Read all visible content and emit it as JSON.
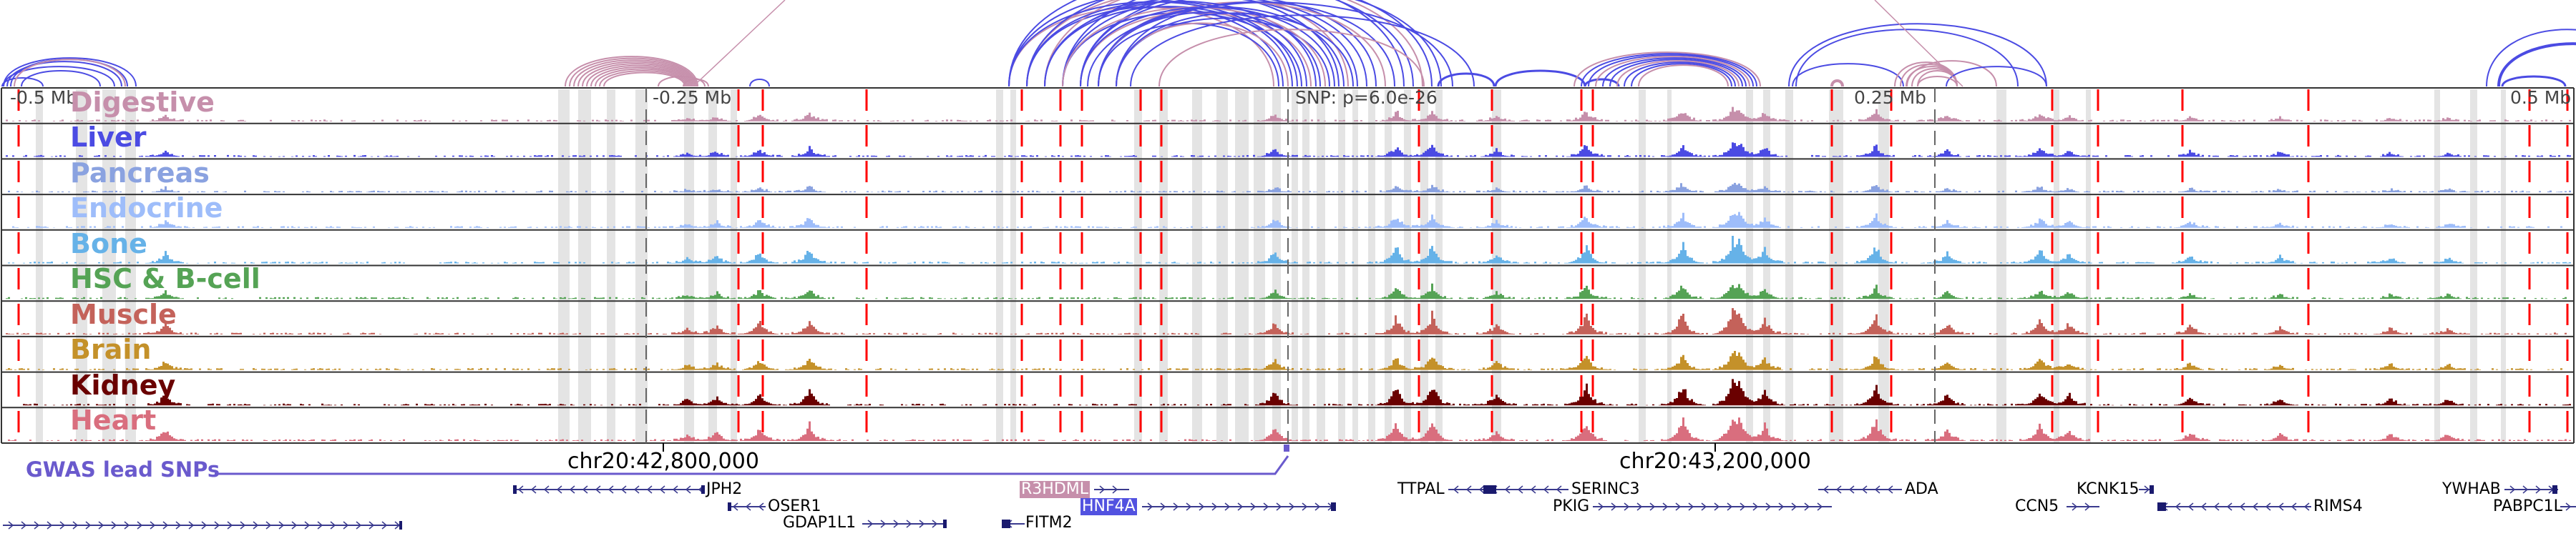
{
  "browser": {
    "tracks": [
      {
        "name": "Digestive",
        "color": "#c68fab"
      },
      {
        "name": "Liver",
        "color": "#4b4be3"
      },
      {
        "name": "Pancreas",
        "color": "#8aa2e0"
      },
      {
        "name": "Endocrine",
        "color": "#9ebdfa"
      },
      {
        "name": "Bone",
        "color": "#66b2e8"
      },
      {
        "name": "HSC & B-cell",
        "color": "#55a355"
      },
      {
        "name": "Muscle",
        "color": "#c4625a"
      },
      {
        "name": "Brain",
        "color": "#c4912a"
      },
      {
        "name": "Kidney",
        "color": "#6a0000"
      },
      {
        "name": "Heart",
        "color": "#d96e7e"
      }
    ],
    "relative_ticks": [
      "-0.5 Mb",
      "-0.25 Mb",
      "0.25 Mb",
      "0.5 Mb"
    ],
    "snp_label": "SNP: p=6.0e-26",
    "coordinates": [
      "chr20:42,800,000",
      "chr20:43,200,000"
    ],
    "gwas_label": "GWAS lead SNPs",
    "arc_colors": {
      "primary": "#4b4be3",
      "secondary": "#c68fab"
    },
    "marker_color": "#ff0000",
    "genes": [
      {
        "name": "JPH2",
        "strand": "-"
      },
      {
        "name": "OSER1",
        "strand": "-"
      },
      {
        "name": "GDAP1L1",
        "strand": "+"
      },
      {
        "name": "R3HDML",
        "strand": "+",
        "highlight": "pink"
      },
      {
        "name": "HNF4A",
        "strand": "+",
        "highlight": "blue"
      },
      {
        "name": "FITM2",
        "strand": "-"
      },
      {
        "name": "TTPAL",
        "strand": "+"
      },
      {
        "name": "SERINC3",
        "strand": "-"
      },
      {
        "name": "PKIG",
        "strand": "+"
      },
      {
        "name": "ADA",
        "strand": "-"
      },
      {
        "name": "KCNK15",
        "strand": "+"
      },
      {
        "name": "CCN5",
        "strand": "+"
      },
      {
        "name": "RIMS4",
        "strand": "-"
      },
      {
        "name": "YWHAB",
        "strand": "+"
      },
      {
        "name": "PABPC1L",
        "strand": "+"
      }
    ]
  }
}
